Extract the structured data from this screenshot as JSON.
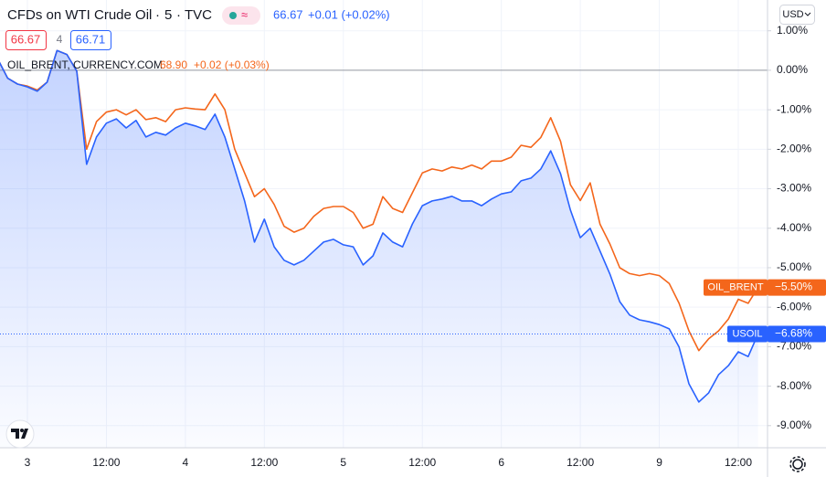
{
  "chart_data": {
    "type": "line",
    "title": "CFDs on WTI Crude Oil",
    "interval": "5",
    "source": "TVC",
    "last_price": "66.67",
    "change": "+0.01 (+0.02%)",
    "bid": "66.67",
    "spread": "4",
    "ask": "66.71",
    "compare_symbol": "OIL_BRENT, CURRENCY.COM",
    "compare_price": "68.90",
    "compare_change": "+0.02 (+0.03%)",
    "currency": "USD",
    "categories": [
      null,
      null,
      null,
      "3",
      null,
      null,
      null,
      null,
      null,
      null,
      null,
      "12:00",
      null,
      null,
      null,
      null,
      null,
      null,
      null,
      "4",
      null,
      null,
      null,
      null,
      null,
      null,
      null,
      "12:00",
      null,
      null,
      null,
      null,
      null,
      null,
      null,
      "5",
      null,
      null,
      null,
      null,
      null,
      null,
      null,
      "12:00",
      null,
      null,
      null,
      null,
      null,
      null,
      null,
      "6",
      null,
      null,
      null,
      null,
      null,
      null,
      null,
      "12:00",
      null,
      null,
      null,
      null,
      null,
      null,
      null,
      "9",
      null,
      null,
      null,
      null,
      null,
      null,
      null,
      "12:00",
      null,
      null
    ],
    "series": [
      {
        "name": "USOIL",
        "color": "#2962ff",
        "last_label": "−6.68%",
        "values": [
          0.28,
          -0.2,
          -0.35,
          -0.42,
          -0.53,
          -0.3,
          0.5,
          0.4,
          -0.02,
          -2.38,
          -1.69,
          -1.34,
          -1.23,
          -1.46,
          -1.27,
          -1.69,
          -1.57,
          -1.64,
          -1.46,
          -1.34,
          -1.41,
          -1.5,
          -1.11,
          -1.69,
          -2.5,
          -3.31,
          -4.35,
          -3.77,
          -4.47,
          -4.81,
          -4.93,
          -4.81,
          -4.58,
          -4.35,
          -4.28,
          -4.42,
          -4.47,
          -4.93,
          -4.7,
          -4.12,
          -4.35,
          -4.47,
          -3.89,
          -3.43,
          -3.31,
          -3.26,
          -3.19,
          -3.31,
          -3.31,
          -3.43,
          -3.26,
          -3.13,
          -3.08,
          -2.8,
          -2.73,
          -2.5,
          -2.04,
          -2.62,
          -3.54,
          -4.24,
          -4.0,
          -4.58,
          -5.16,
          -5.86,
          -6.2,
          -6.32,
          -6.37,
          -6.44,
          -6.55,
          -7.01,
          -7.94,
          -8.4,
          -8.17,
          -7.71,
          -7.48,
          -7.13,
          -7.25,
          -6.68
        ]
      },
      {
        "name": "OIL_BRENT",
        "color": "#f4661b",
        "last_label": "−5.50%",
        "values": [
          0.28,
          -0.2,
          -0.35,
          -0.4,
          -0.5,
          -0.3,
          0.5,
          0.4,
          -0.02,
          -2.0,
          -1.3,
          -1.06,
          -1.0,
          -1.13,
          -1.0,
          -1.25,
          -1.2,
          -1.3,
          -1.0,
          -0.95,
          -0.98,
          -1.0,
          -0.6,
          -1.0,
          -2.0,
          -2.6,
          -3.2,
          -3.0,
          -3.4,
          -3.95,
          -4.1,
          -4.0,
          -3.7,
          -3.5,
          -3.45,
          -3.45,
          -3.6,
          -4.0,
          -3.9,
          -3.2,
          -3.5,
          -3.6,
          -3.1,
          -2.6,
          -2.5,
          -2.55,
          -2.45,
          -2.5,
          -2.4,
          -2.5,
          -2.3,
          -2.3,
          -2.2,
          -1.9,
          -1.95,
          -1.7,
          -1.2,
          -1.8,
          -2.9,
          -3.3,
          -2.85,
          -3.9,
          -4.4,
          -5.0,
          -5.15,
          -5.2,
          -5.15,
          -5.2,
          -5.4,
          -5.9,
          -6.6,
          -7.1,
          -6.8,
          -6.6,
          -6.3,
          -5.8,
          -5.9,
          -5.5
        ]
      }
    ],
    "ylim": [
      -9.56,
      1.78
    ],
    "yticks": [
      {
        "value": 1,
        "label": "1.00%"
      },
      {
        "value": 0,
        "label": "0.00%"
      },
      {
        "value": -1,
        "label": "-1.00%"
      },
      {
        "value": -2,
        "label": "-2.00%"
      },
      {
        "value": -3,
        "label": "-3.00%"
      },
      {
        "value": -4,
        "label": "-4.00%"
      },
      {
        "value": -5,
        "label": "-5.00%"
      },
      {
        "value": -6,
        "label": "-6.00%"
      },
      {
        "value": -7,
        "label": "-7.00%"
      },
      {
        "value": -8,
        "label": "-8.00%"
      },
      {
        "value": -9,
        "label": "-9.00%"
      }
    ],
    "grid": true
  }
}
